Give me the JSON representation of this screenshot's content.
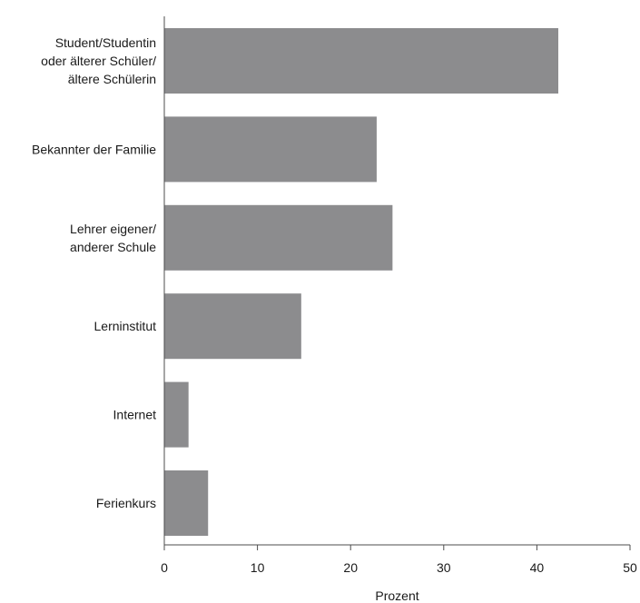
{
  "chart_data": {
    "type": "bar",
    "orientation": "horizontal",
    "categories": [
      [
        "Student/Studentin",
        "oder älterer Schüler/",
        "ältere Schülerin"
      ],
      [
        "Bekannter der Familie"
      ],
      [
        "Lehrer eigener/",
        "anderer Schule"
      ],
      [
        "Lerninstitut"
      ],
      [
        "Internet"
      ],
      [
        "Ferienkurs"
      ]
    ],
    "values": [
      42.3,
      22.8,
      24.5,
      14.7,
      2.6,
      4.7
    ],
    "xlabel": "Prozent",
    "ylabel": "",
    "xlim": [
      0,
      50
    ],
    "xticks": [
      "0",
      "10",
      "20",
      "30",
      "40",
      "50"
    ],
    "bar_color": "#8c8c8e",
    "grid": false,
    "legend": "none"
  }
}
